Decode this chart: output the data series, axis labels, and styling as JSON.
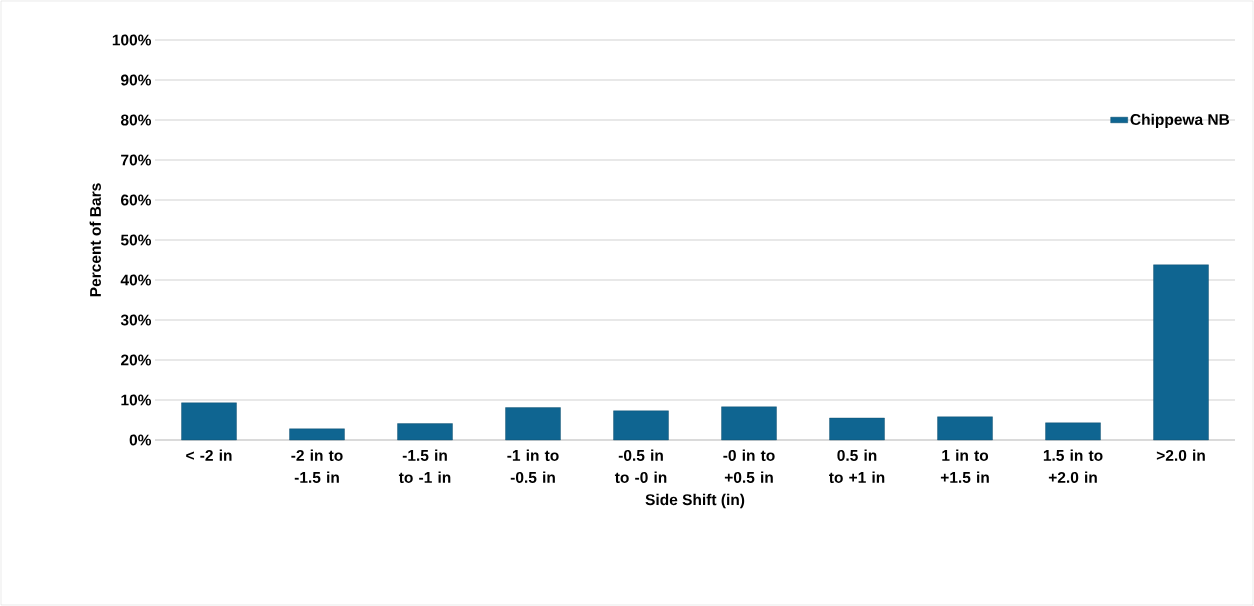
{
  "chart_data": {
    "type": "bar",
    "xlabel": "Side Shift (in)",
    "ylabel": "Percent of Bars",
    "categories": [
      "< -2 in",
      "-2 in to -1.5 in",
      "-1.5 in to -1 in",
      "-1 in to -0.5 in",
      "-0.5 in to -0 in",
      "-0 in to +0.5 in",
      "0.5 in to +1 in",
      "1 in to +1.5 in",
      "1.5 in to +2.0 in",
      ">2.0 in"
    ],
    "series": [
      {
        "name": "Chippewa NB",
        "color": "#0f6591",
        "values": [
          9.3,
          2.8,
          4.1,
          8.1,
          7.3,
          8.3,
          5.5,
          5.8,
          4.3,
          43.8
        ]
      }
    ],
    "ylim": [
      0,
      100
    ],
    "yticks": [
      {
        "value": 0,
        "label": "0%"
      },
      {
        "value": 10,
        "label": "10%"
      },
      {
        "value": 20,
        "label": "20%"
      },
      {
        "value": 30,
        "label": "30%"
      },
      {
        "value": 40,
        "label": "40%"
      },
      {
        "value": 50,
        "label": "50%"
      },
      {
        "value": 60,
        "label": "60%"
      },
      {
        "value": 70,
        "label": "70%"
      },
      {
        "value": 80,
        "label": "80%"
      },
      {
        "value": 90,
        "label": "90%"
      },
      {
        "value": 100,
        "label": "100%"
      }
    ],
    "grid": "y",
    "legend": "right"
  }
}
